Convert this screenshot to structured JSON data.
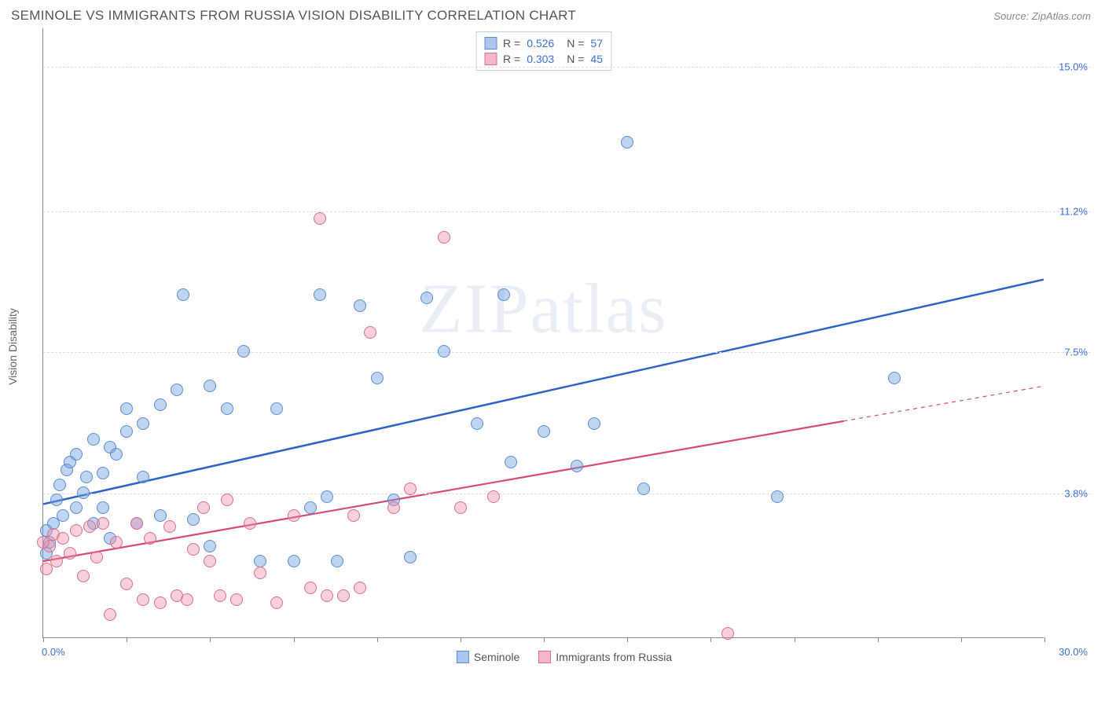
{
  "header": {
    "title": "SEMINOLE VS IMMIGRANTS FROM RUSSIA VISION DISABILITY CORRELATION CHART",
    "source_prefix": "Source: ",
    "source_name": "ZipAtlas.com"
  },
  "watermark": "ZIPatlas",
  "axes": {
    "y_label": "Vision Disability",
    "x_min": 0.0,
    "x_max": 30.0,
    "x_min_label": "0.0%",
    "x_max_label": "30.0%",
    "y_min": 0.0,
    "y_max": 16.0,
    "y_gridlines": [
      3.8,
      7.5,
      11.2,
      15.0
    ],
    "y_grid_labels": [
      "3.8%",
      "7.5%",
      "11.2%",
      "15.0%"
    ],
    "x_ticks": [
      0,
      2.5,
      5,
      7.5,
      10,
      12.5,
      15,
      17.5,
      20,
      22.5,
      25,
      27.5,
      30
    ],
    "grid_color": "#dddddd",
    "axis_color": "#888888",
    "tick_label_color": "#3b6fd6"
  },
  "series": [
    {
      "key": "seminole",
      "label": "Seminole",
      "fill": "rgba(110,160,225,0.45)",
      "stroke": "#5a8fd0",
      "swatch_fill": "#aac6ef",
      "swatch_border": "#5a8fd0",
      "r_value": "0.526",
      "n_value": "57",
      "trend": {
        "x1": 0.0,
        "y1": 3.5,
        "x2": 30.0,
        "y2": 9.4,
        "color": "#2f63c7",
        "width": 2.5,
        "dash_after_x": null
      },
      "point_radius": 8,
      "points": [
        [
          0.2,
          2.5
        ],
        [
          0.3,
          3.0
        ],
        [
          0.4,
          3.6
        ],
        [
          0.5,
          4.0
        ],
        [
          0.6,
          3.2
        ],
        [
          0.7,
          4.4
        ],
        [
          0.8,
          4.6
        ],
        [
          1.0,
          3.4
        ],
        [
          1.0,
          4.8
        ],
        [
          1.2,
          3.8
        ],
        [
          1.3,
          4.2
        ],
        [
          1.5,
          5.2
        ],
        [
          1.5,
          3.0
        ],
        [
          1.8,
          4.3
        ],
        [
          1.8,
          3.4
        ],
        [
          2.0,
          5.0
        ],
        [
          2.0,
          2.6
        ],
        [
          2.2,
          4.8
        ],
        [
          2.5,
          5.4
        ],
        [
          2.5,
          6.0
        ],
        [
          2.8,
          3.0
        ],
        [
          3.0,
          5.6
        ],
        [
          3.0,
          4.2
        ],
        [
          3.5,
          6.1
        ],
        [
          3.5,
          3.2
        ],
        [
          4.0,
          6.5
        ],
        [
          4.2,
          9.0
        ],
        [
          4.5,
          3.1
        ],
        [
          5.0,
          6.6
        ],
        [
          5.0,
          2.4
        ],
        [
          5.5,
          6.0
        ],
        [
          6.0,
          7.5
        ],
        [
          6.5,
          2.0
        ],
        [
          7.0,
          6.0
        ],
        [
          7.5,
          2.0
        ],
        [
          8.0,
          3.4
        ],
        [
          8.3,
          9.0
        ],
        [
          8.5,
          3.7
        ],
        [
          8.8,
          2.0
        ],
        [
          9.5,
          8.7
        ],
        [
          10.0,
          6.8
        ],
        [
          10.5,
          3.6
        ],
        [
          11.0,
          2.1
        ],
        [
          11.5,
          8.9
        ],
        [
          12.0,
          7.5
        ],
        [
          13.0,
          5.6
        ],
        [
          13.8,
          9.0
        ],
        [
          14.0,
          4.6
        ],
        [
          15.0,
          5.4
        ],
        [
          16.0,
          4.5
        ],
        [
          16.5,
          5.6
        ],
        [
          17.5,
          13.0
        ],
        [
          18.0,
          3.9
        ],
        [
          22.0,
          3.7
        ],
        [
          25.5,
          6.8
        ],
        [
          0.1,
          2.2
        ],
        [
          0.1,
          2.8
        ]
      ]
    },
    {
      "key": "russia",
      "label": "Immigrants from Russia",
      "fill": "rgba(240,140,170,0.42)",
      "stroke": "#d7718f",
      "swatch_fill": "#f3b7c8",
      "swatch_border": "#d7718f",
      "r_value": "0.303",
      "n_value": "45",
      "trend": {
        "x1": 0.0,
        "y1": 2.0,
        "x2": 30.0,
        "y2": 6.6,
        "color": "#d94a74",
        "width": 2.2,
        "dash_after_x": 24.0
      },
      "point_radius": 8,
      "points": [
        [
          0.1,
          1.8
        ],
        [
          0.2,
          2.4
        ],
        [
          0.3,
          2.7
        ],
        [
          0.4,
          2.0
        ],
        [
          0.6,
          2.6
        ],
        [
          0.8,
          2.2
        ],
        [
          1.0,
          2.8
        ],
        [
          1.2,
          1.6
        ],
        [
          1.4,
          2.9
        ],
        [
          1.6,
          2.1
        ],
        [
          1.8,
          3.0
        ],
        [
          2.0,
          0.6
        ],
        [
          2.2,
          2.5
        ],
        [
          2.5,
          1.4
        ],
        [
          2.8,
          3.0
        ],
        [
          3.0,
          1.0
        ],
        [
          3.2,
          2.6
        ],
        [
          3.5,
          0.9
        ],
        [
          3.8,
          2.9
        ],
        [
          4.0,
          1.1
        ],
        [
          4.3,
          1.0
        ],
        [
          4.5,
          2.3
        ],
        [
          4.8,
          3.4
        ],
        [
          5.0,
          2.0
        ],
        [
          5.3,
          1.1
        ],
        [
          5.5,
          3.6
        ],
        [
          5.8,
          1.0
        ],
        [
          6.2,
          3.0
        ],
        [
          6.5,
          1.7
        ],
        [
          7.0,
          0.9
        ],
        [
          7.5,
          3.2
        ],
        [
          8.0,
          1.3
        ],
        [
          8.3,
          11.0
        ],
        [
          8.5,
          1.1
        ],
        [
          9.0,
          1.1
        ],
        [
          9.3,
          3.2
        ],
        [
          9.5,
          1.3
        ],
        [
          9.8,
          8.0
        ],
        [
          10.5,
          3.4
        ],
        [
          11.0,
          3.9
        ],
        [
          12.0,
          10.5
        ],
        [
          12.5,
          3.4
        ],
        [
          13.5,
          3.7
        ],
        [
          20.5,
          0.1
        ],
        [
          0.0,
          2.5
        ]
      ]
    }
  ],
  "legend_stat_labels": {
    "r": "R =",
    "n": "N ="
  }
}
